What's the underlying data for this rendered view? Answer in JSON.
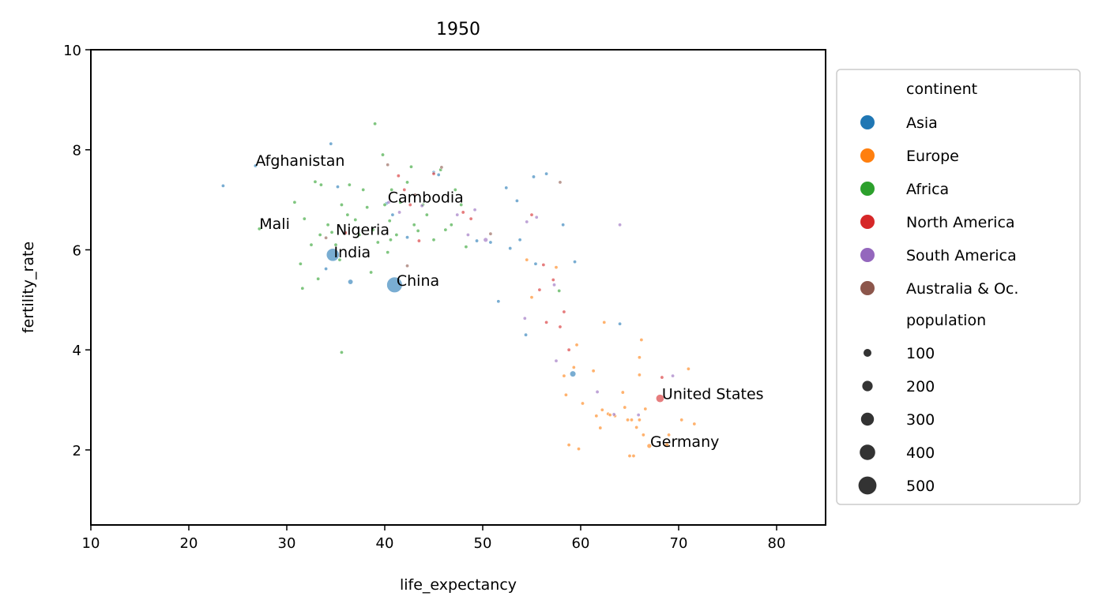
{
  "chart_data": {
    "type": "scatter",
    "title": "1950",
    "xlabel": "life_expectancy",
    "ylabel": "fertility_rate",
    "xlim": [
      10,
      85
    ],
    "ylim": [
      0.5,
      10
    ],
    "xticks": [
      10,
      20,
      30,
      40,
      50,
      60,
      70,
      80
    ],
    "yticks": [
      2,
      4,
      6,
      8,
      10
    ],
    "grid": false,
    "legend_position": "outside-right",
    "point_alpha": 0.6,
    "hue_title": "continent",
    "size_title": "population",
    "size_legend": [
      100,
      200,
      300,
      400,
      500
    ],
    "series": [
      {
        "name": "Asia",
        "color": "#1f77b4",
        "points": [
          [
            23.5,
            7.28,
            8
          ],
          [
            26.8,
            7.68,
            9
          ],
          [
            34.5,
            8.12,
            5
          ],
          [
            35.2,
            7.26,
            12
          ],
          [
            34.0,
            5.62,
            8
          ],
          [
            34.7,
            5.9,
            372
          ],
          [
            36.5,
            5.36,
            60
          ],
          [
            41.0,
            5.3,
            550
          ],
          [
            40.2,
            6.93,
            14
          ],
          [
            40.8,
            6.7,
            12
          ],
          [
            42.3,
            6.25,
            28
          ],
          [
            45.0,
            7.55,
            6
          ],
          [
            49.4,
            6.18,
            20
          ],
          [
            51.6,
            4.97,
            18
          ],
          [
            52.4,
            7.24,
            4
          ],
          [
            52.8,
            6.03,
            14
          ],
          [
            53.5,
            6.98,
            4
          ],
          [
            53.8,
            6.2,
            10
          ],
          [
            54.4,
            4.3,
            8
          ],
          [
            55.2,
            7.46,
            10
          ],
          [
            56.5,
            7.52,
            4
          ],
          [
            58.2,
            6.5,
            4
          ],
          [
            59.4,
            5.76,
            4
          ],
          [
            59.2,
            3.52,
            82
          ],
          [
            64.0,
            4.52,
            4
          ],
          [
            50.8,
            6.15,
            6
          ],
          [
            55.4,
            5.72,
            4
          ],
          [
            45.5,
            7.5,
            4
          ]
        ]
      },
      {
        "name": "Europe",
        "color": "#ff7f0e",
        "points": [
          [
            54.5,
            5.8,
            5
          ],
          [
            55.0,
            5.05,
            5
          ],
          [
            57.5,
            5.65,
            4
          ],
          [
            58.3,
            3.48,
            8
          ],
          [
            58.5,
            3.1,
            10
          ],
          [
            58.8,
            2.1,
            5
          ],
          [
            59.3,
            3.65,
            14
          ],
          [
            59.6,
            4.1,
            5
          ],
          [
            59.8,
            2.02,
            5
          ],
          [
            60.2,
            2.93,
            5
          ],
          [
            61.3,
            3.58,
            14
          ],
          [
            61.6,
            2.68,
            5
          ],
          [
            62.0,
            2.44,
            14
          ],
          [
            62.2,
            2.8,
            8
          ],
          [
            62.4,
            4.55,
            5
          ],
          [
            62.8,
            2.72,
            14
          ],
          [
            63.5,
            2.68,
            5
          ],
          [
            64.3,
            3.15,
            5
          ],
          [
            64.5,
            2.85,
            8
          ],
          [
            64.8,
            2.6,
            5
          ],
          [
            65.0,
            1.88,
            8
          ],
          [
            65.4,
            1.88,
            8
          ],
          [
            65.7,
            2.45,
            20
          ],
          [
            66.0,
            2.6,
            5
          ],
          [
            66.0,
            3.5,
            5
          ],
          [
            66.2,
            4.2,
            5
          ],
          [
            66.4,
            2.3,
            5
          ],
          [
            66.6,
            2.82,
            20
          ],
          [
            66.0,
            3.85,
            5
          ],
          [
            67.0,
            2.08,
            48
          ],
          [
            68.8,
            2.1,
            40
          ],
          [
            69.0,
            2.3,
            5
          ],
          [
            70.3,
            2.6,
            5
          ],
          [
            71.0,
            3.62,
            5
          ],
          [
            71.6,
            2.52,
            5
          ],
          [
            65.2,
            2.6,
            5
          ],
          [
            63.0,
            2.7,
            5
          ]
        ]
      },
      {
        "name": "Africa",
        "color": "#2ca02c",
        "points": [
          [
            27.2,
            6.42,
            8
          ],
          [
            30.8,
            6.95,
            8
          ],
          [
            31.4,
            5.72,
            5
          ],
          [
            31.6,
            5.23,
            5
          ],
          [
            31.8,
            6.62,
            5
          ],
          [
            32.5,
            6.1,
            5
          ],
          [
            32.9,
            7.36,
            14
          ],
          [
            33.2,
            5.42,
            5
          ],
          [
            33.4,
            6.3,
            8
          ],
          [
            33.5,
            7.3,
            5
          ],
          [
            34.2,
            6.5,
            8
          ],
          [
            34.6,
            6.35,
            8
          ],
          [
            35.0,
            6.1,
            5
          ],
          [
            35.4,
            5.8,
            5
          ],
          [
            35.6,
            6.9,
            8
          ],
          [
            35.6,
            3.95,
            8
          ],
          [
            36.2,
            6.7,
            8
          ],
          [
            36.4,
            7.3,
            8
          ],
          [
            37.0,
            6.6,
            5
          ],
          [
            37.4,
            6.3,
            5
          ],
          [
            37.8,
            7.2,
            8
          ],
          [
            38.2,
            6.85,
            8
          ],
          [
            38.6,
            5.55,
            8
          ],
          [
            38.8,
            6.4,
            8
          ],
          [
            39.0,
            8.52,
            8
          ],
          [
            39.3,
            6.15,
            5
          ],
          [
            39.8,
            7.9,
            8
          ],
          [
            40.0,
            6.9,
            14
          ],
          [
            40.3,
            5.95,
            8
          ],
          [
            40.5,
            6.58,
            5
          ],
          [
            40.7,
            7.2,
            8
          ],
          [
            41.2,
            6.3,
            14
          ],
          [
            41.6,
            6.95,
            8
          ],
          [
            42.3,
            7.35,
            14
          ],
          [
            42.7,
            7.66,
            8
          ],
          [
            43.4,
            6.38,
            8
          ],
          [
            43.9,
            6.9,
            8
          ],
          [
            44.3,
            6.7,
            8
          ],
          [
            45.0,
            6.2,
            8
          ],
          [
            45.7,
            7.6,
            8
          ],
          [
            46.2,
            6.4,
            8
          ],
          [
            46.8,
            6.5,
            8
          ],
          [
            47.2,
            7.2,
            5
          ],
          [
            47.8,
            6.9,
            8
          ],
          [
            48.3,
            6.06,
            8
          ],
          [
            57.8,
            5.18,
            8
          ],
          [
            40.6,
            6.2,
            8
          ],
          [
            43.0,
            6.5,
            5
          ]
        ]
      },
      {
        "name": "North America",
        "color": "#d62728",
        "points": [
          [
            36.0,
            6.34,
            8
          ],
          [
            41.4,
            7.48,
            8
          ],
          [
            42.6,
            6.9,
            8
          ],
          [
            43.5,
            6.18,
            8
          ],
          [
            45.0,
            7.52,
            5
          ],
          [
            48.8,
            6.62,
            20
          ],
          [
            55.0,
            6.7,
            8
          ],
          [
            56.2,
            5.7,
            5
          ],
          [
            56.5,
            4.55,
            8
          ],
          [
            57.2,
            5.4,
            8
          ],
          [
            57.9,
            4.46,
            5
          ],
          [
            58.3,
            4.76,
            8
          ],
          [
            58.8,
            4.0,
            5
          ],
          [
            55.8,
            5.2,
            8
          ],
          [
            68.1,
            3.03,
            150
          ],
          [
            68.3,
            3.45,
            14
          ],
          [
            48.0,
            6.75,
            5
          ],
          [
            42.0,
            7.2,
            5
          ]
        ]
      },
      {
        "name": "South America",
        "color": "#9467bd",
        "points": [
          [
            40.4,
            6.95,
            5
          ],
          [
            41.5,
            6.75,
            8
          ],
          [
            43.8,
            6.88,
            8
          ],
          [
            47.4,
            6.7,
            8
          ],
          [
            48.5,
            6.3,
            8
          ],
          [
            49.2,
            6.8,
            8
          ],
          [
            50.3,
            6.2,
            48
          ],
          [
            54.5,
            6.56,
            8
          ],
          [
            54.3,
            4.63,
            8
          ],
          [
            55.5,
            6.65,
            8
          ],
          [
            57.3,
            5.3,
            8
          ],
          [
            57.5,
            3.78,
            8
          ],
          [
            61.7,
            3.16,
            14
          ],
          [
            63.4,
            2.71,
            5
          ],
          [
            64.0,
            6.5,
            8
          ],
          [
            65.9,
            2.7,
            5
          ],
          [
            69.4,
            3.48,
            8
          ]
        ]
      },
      {
        "name": "Australia & Oc.",
        "color": "#8c564b",
        "points": [
          [
            34.0,
            6.24,
            8
          ],
          [
            40.3,
            7.7,
            8
          ],
          [
            42.3,
            5.68,
            5
          ],
          [
            43.1,
            7.1,
            5
          ],
          [
            45.8,
            7.65,
            5
          ],
          [
            57.9,
            7.35,
            8
          ],
          [
            50.8,
            6.32,
            5
          ]
        ]
      }
    ],
    "annotations": [
      {
        "text": "Afghanistan",
        "x": 26.8,
        "y": 7.68
      },
      {
        "text": "Cambodia",
        "x": 40.3,
        "y": 6.95
      },
      {
        "text": "Mali",
        "x": 27.2,
        "y": 6.42
      },
      {
        "text": "Nigeria",
        "x": 35.0,
        "y": 6.3
      },
      {
        "text": "India",
        "x": 34.8,
        "y": 5.85
      },
      {
        "text": "China",
        "x": 41.2,
        "y": 5.28
      },
      {
        "text": "United States",
        "x": 68.3,
        "y": 3.02
      },
      {
        "text": "Germany",
        "x": 67.1,
        "y": 2.06
      }
    ]
  }
}
